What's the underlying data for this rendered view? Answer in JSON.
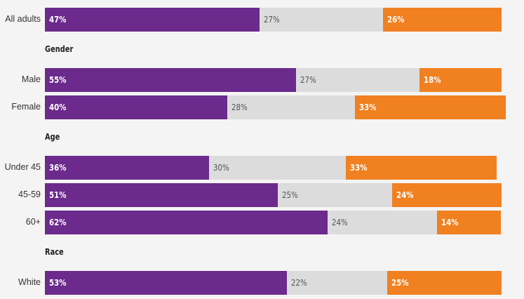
{
  "colors": {
    "support": "#6b2a8c",
    "neutral": "#dcdcdc",
    "oppose": "#f08020",
    "background": "#f4f4f4"
  },
  "chart_data": {
    "type": "bar",
    "orientation": "horizontal",
    "stacked": true,
    "xlim": [
      0,
      100
    ],
    "groups": [
      {
        "title": "All adults",
        "rows": [
          {
            "label": "All adults",
            "values": [
              47,
              27,
              26
            ],
            "labels": [
              "47%",
              "27%",
              "26%"
            ]
          }
        ]
      },
      {
        "title": "Gender",
        "rows": [
          {
            "label": "Male",
            "values": [
              55,
              27,
              18
            ],
            "labels": [
              "55%",
              "27%",
              "18%"
            ]
          },
          {
            "label": "Female",
            "values": [
              40,
              28,
              33
            ],
            "labels": [
              "40%",
              "28%",
              "33%"
            ]
          }
        ]
      },
      {
        "title": "Age",
        "rows": [
          {
            "label": "Under 45",
            "values": [
              36,
              30,
              33
            ],
            "labels": [
              "36%",
              "30%",
              "33%"
            ]
          },
          {
            "label": "45-59",
            "values": [
              51,
              25,
              24
            ],
            "labels": [
              "51%",
              "25%",
              "24%"
            ]
          },
          {
            "label": "60+",
            "values": [
              62,
              24,
              14
            ],
            "labels": [
              "62%",
              "24%",
              "14%"
            ]
          }
        ]
      },
      {
        "title": "Race",
        "rows": [
          {
            "label": "White",
            "values": [
              53,
              22,
              25
            ],
            "labels": [
              "53%",
              "22%",
              "25%"
            ]
          }
        ]
      }
    ]
  }
}
